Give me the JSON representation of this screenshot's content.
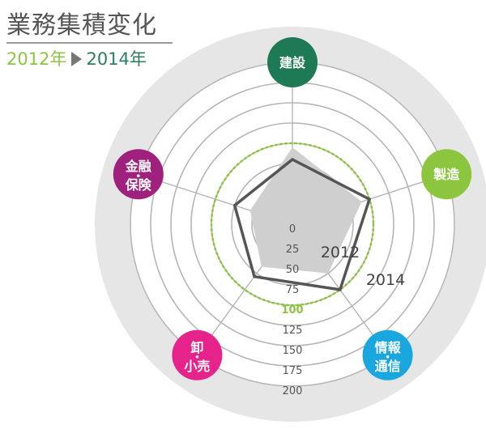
{
  "header": {
    "title": "業務集積変化",
    "year_from": "2012年",
    "year_to": "2014年"
  },
  "colors": {
    "ring_outer": "#e6e6e6",
    "ring_lines": "#b5b5b5",
    "polygon_2012_fill": "#cfcfcf",
    "polygon_2014_stroke": "#555555",
    "reference_100": "#8cc63f"
  },
  "chart_data": {
    "type": "radar",
    "axes": [
      {
        "label": "建設",
        "label_lines": [
          "建設"
        ],
        "color": "#1e7a55"
      },
      {
        "label": "製造",
        "label_lines": [
          "製造"
        ],
        "color": "#8cc63f"
      },
      {
        "label": "情報・通信",
        "label_lines": [
          "情報",
          "通信"
        ],
        "color": "#1aa7df"
      },
      {
        "label": "卸・小売",
        "label_lines": [
          "卸",
          "小売"
        ],
        "color": "#e6238a"
      },
      {
        "label": "金融・保険",
        "label_lines": [
          "金融",
          "保険"
        ],
        "color": "#a0207e"
      }
    ],
    "scale_ticks": [
      "0",
      "25",
      "50",
      "75",
      "100",
      "125",
      "150",
      "175",
      "200"
    ],
    "rmax": 200,
    "reference_value": 100,
    "series": [
      {
        "name": "2012",
        "values": [
          95,
          90,
          75,
          65,
          55
        ],
        "style": "filled"
      },
      {
        "name": "2014",
        "values": [
          80,
          100,
          100,
          80,
          75
        ],
        "style": "outline"
      }
    ]
  }
}
